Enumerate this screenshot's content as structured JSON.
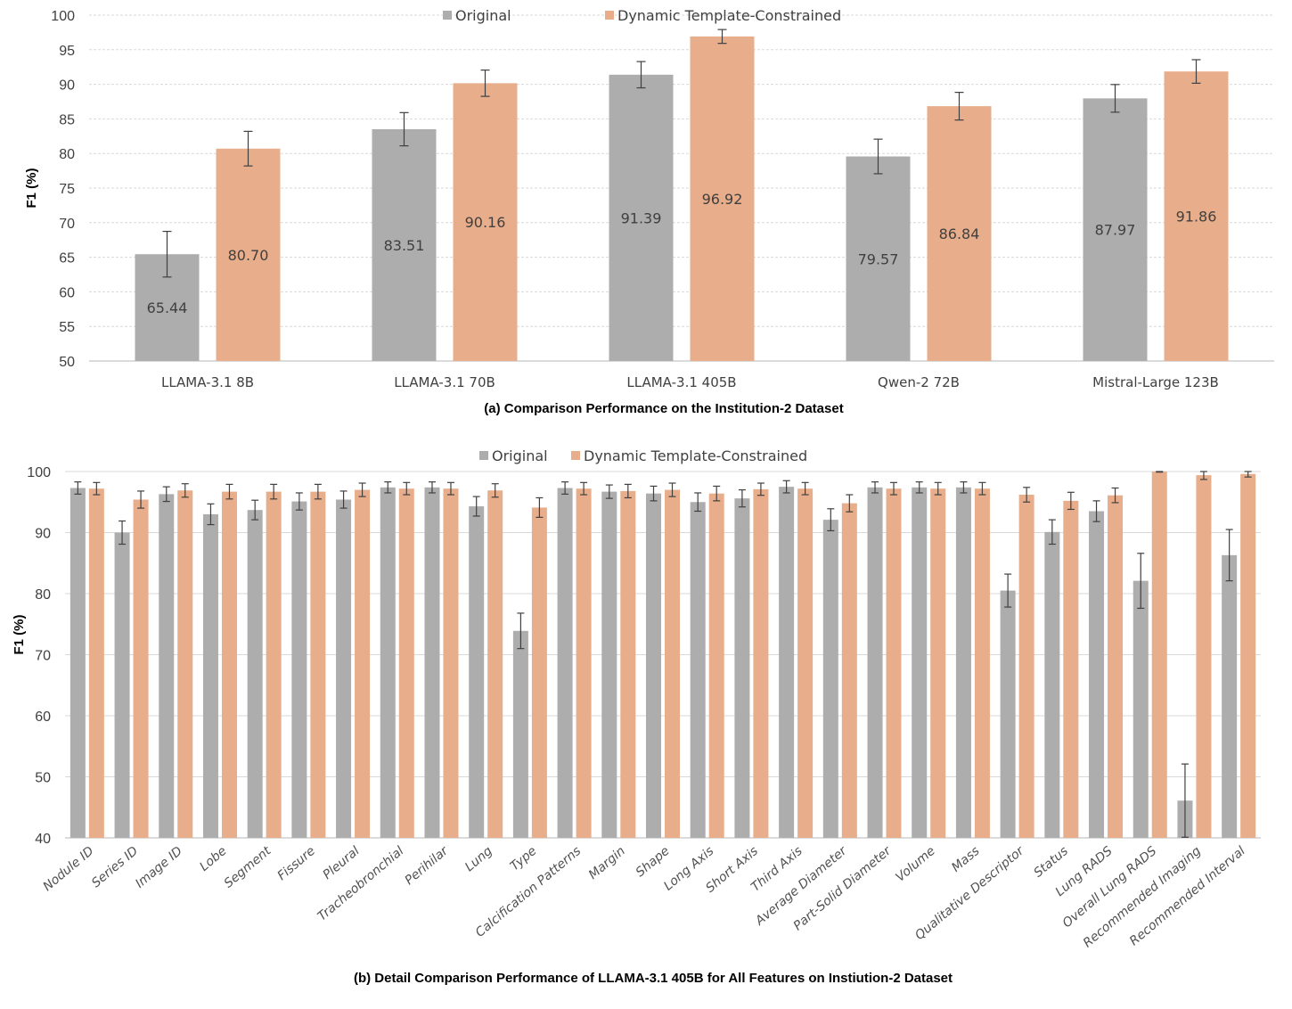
{
  "colors": {
    "original": "#adadad",
    "dtc": "#e8ad8a",
    "grid": "#d9d9d9",
    "error": "#404040"
  },
  "chart_data": [
    {
      "type": "bar",
      "title": "(a) Comparison Performance on the Institution-2 Dataset",
      "xlabel": "",
      "ylabel": "F1 (%)",
      "ylim": [
        50,
        100
      ],
      "yticks": [
        50,
        55,
        60,
        65,
        70,
        75,
        80,
        85,
        90,
        95,
        100
      ],
      "grid": true,
      "grid_style": "dashed",
      "legend_position": "top-center",
      "categories": [
        "LLAMA-3.1 8B",
        "LLAMA-3.1 70B",
        "LLAMA-3.1 405B",
        "Qwen-2 72B",
        "Mistral-Large 123B"
      ],
      "series": [
        {
          "name": "Original",
          "values": [
            65.44,
            83.51,
            91.39,
            79.57,
            87.97
          ],
          "errors": [
            3.3,
            2.4,
            1.9,
            2.5,
            2.0
          ],
          "labels": [
            "65.44",
            "83.51",
            "91.39",
            "79.57",
            "87.97"
          ]
        },
        {
          "name": "Dynamic Template-Constrained",
          "values": [
            80.7,
            90.16,
            96.92,
            86.84,
            91.86
          ],
          "errors": [
            2.5,
            1.9,
            1.0,
            2.0,
            1.7
          ],
          "labels": [
            "80.70",
            "90.16",
            "96.92",
            "86.84",
            "91.86"
          ]
        }
      ]
    },
    {
      "type": "bar",
      "title": "(b) Detail Comparison Performance of LLAMA-3.1 405B for All Features on Instiution-2 Dataset",
      "xlabel": "",
      "ylabel": "F1 (%)",
      "ylim": [
        40,
        100
      ],
      "yticks": [
        40,
        50,
        60,
        70,
        80,
        90,
        100
      ],
      "grid": true,
      "grid_style": "solid",
      "legend_position": "top-center",
      "categories": [
        "Nodule ID",
        "Series ID",
        "Image ID",
        "Lobe",
        "Segment",
        "Fissure",
        "Pleural",
        "Tracheobronchial",
        "Perihilar",
        "Lung",
        "Type",
        "Calcification Patterns",
        "Margin",
        "Shape",
        "Long Axis",
        "Short Axis",
        "Third Axis",
        "Average Diameter",
        "Part-Solid Diameter",
        "Volume",
        "Mass",
        "Qualitative Descriptor",
        "Status",
        "Lung RADS",
        "Overall Lung RADS",
        "Recommended Imaging",
        "Recommended Interval"
      ],
      "series": [
        {
          "name": "Original",
          "values": [
            97.3,
            90.0,
            96.3,
            93.0,
            93.7,
            95.1,
            95.4,
            97.4,
            97.4,
            94.3,
            73.9,
            97.3,
            96.7,
            96.4,
            95.0,
            95.6,
            97.5,
            92.1,
            97.4,
            97.4,
            97.4,
            80.5,
            90.1,
            93.5,
            82.1,
            46.1,
            86.3
          ],
          "errors": [
            1.0,
            1.9,
            1.2,
            1.7,
            1.6,
            1.4,
            1.4,
            0.9,
            0.9,
            1.6,
            2.9,
            1.0,
            1.1,
            1.2,
            1.5,
            1.4,
            1.0,
            1.8,
            0.9,
            0.9,
            0.9,
            2.7,
            2.0,
            1.7,
            4.5,
            6.0,
            4.2
          ]
        },
        {
          "name": "Dynamic Template-Constrained",
          "values": [
            97.2,
            95.4,
            96.9,
            96.7,
            96.7,
            96.7,
            97.0,
            97.2,
            97.2,
            96.9,
            94.1,
            97.2,
            96.8,
            97.0,
            96.4,
            97.1,
            97.2,
            94.8,
            97.2,
            97.2,
            97.2,
            96.2,
            95.2,
            96.1,
            100.0,
            99.4,
            99.6
          ],
          "errors": [
            1.0,
            1.4,
            1.1,
            1.2,
            1.2,
            1.2,
            1.1,
            1.0,
            1.0,
            1.1,
            1.6,
            1.0,
            1.1,
            1.1,
            1.2,
            1.0,
            1.0,
            1.4,
            1.0,
            1.0,
            1.0,
            1.2,
            1.4,
            1.2,
            0.1,
            0.7,
            0.5
          ]
        }
      ]
    }
  ]
}
